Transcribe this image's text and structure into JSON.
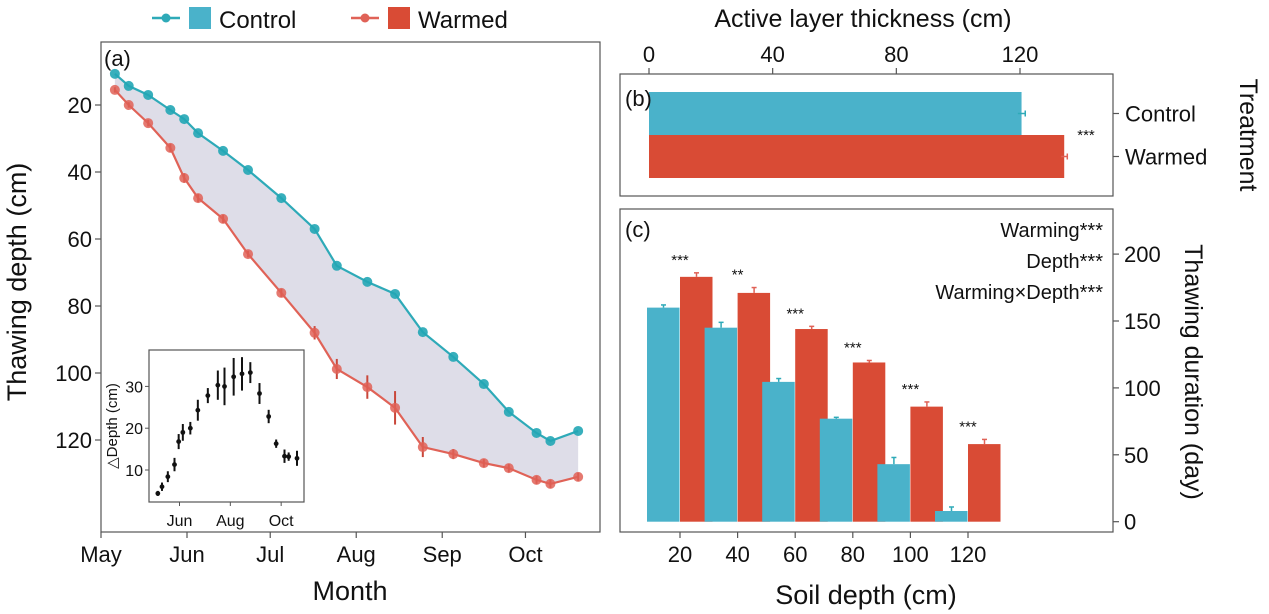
{
  "legend": {
    "items": [
      {
        "label": "Control",
        "color": "#4AB2CA",
        "line_color": "#2EAAB8"
      },
      {
        "label": "Warmed",
        "color": "#D94B35",
        "line_color": "#E06257"
      }
    ]
  },
  "colors": {
    "control": "#4AB2CA",
    "control_line": "#2EAAB8",
    "warmed": "#D94B35",
    "warmed_line": "#E06257",
    "fill_between": "#DCDBE7"
  },
  "chart_data": [
    {
      "panel": "a",
      "panel_label": "(a)",
      "type": "line",
      "xlabel": "Month",
      "ylabel": "Thawing depth (cm)",
      "y_reversed": true,
      "ylim": [
        1,
        150
      ],
      "yticks": [
        20,
        40,
        60,
        80,
        100,
        120
      ],
      "x_unit": "days since May 1",
      "xlim": [
        -2,
        178
      ],
      "xticks": [
        {
          "label": "May",
          "value": 0
        },
        {
          "label": "Jun",
          "value": 31
        },
        {
          "label": "Jul",
          "value": 61
        },
        {
          "label": "Aug",
          "value": 92
        },
        {
          "label": "Sep",
          "value": 123
        },
        {
          "label": "Oct",
          "value": 153
        }
      ],
      "x": [
        5,
        10,
        17,
        25,
        30,
        35,
        44,
        53,
        65,
        77,
        85,
        96,
        106,
        116,
        127,
        138,
        147,
        157,
        162,
        172
      ],
      "series": [
        {
          "name": "Control",
          "values": [
            10.7,
            14.3,
            17.0,
            21.5,
            24.2,
            28.4,
            33.7,
            39.4,
            47.8,
            57.0,
            68.0,
            72.8,
            76.4,
            87.8,
            95.2,
            103.3,
            111.6,
            117.9,
            120.3,
            117.3
          ]
        },
        {
          "name": "Warmed",
          "values": [
            15.5,
            20.0,
            25.4,
            32.8,
            41.8,
            47.8,
            54.0,
            64.5,
            76.1,
            88.0,
            98.8,
            104.2,
            110.4,
            122.1,
            124.2,
            126.9,
            128.4,
            131.9,
            133.1,
            131.0
          ],
          "errors": [
            0.8,
            0.8,
            1.0,
            1.2,
            1.4,
            1.2,
            1.2,
            1.0,
            1.2,
            2.0,
            3.0,
            3.5,
            5.0,
            3.0,
            1.5,
            1.2,
            1.2,
            1.2,
            1.2,
            1.2
          ]
        }
      ],
      "shaded_between_series": true,
      "inset": {
        "type": "scatter",
        "ylabel": "△Depth (cm)",
        "yticks": [
          10,
          20,
          30
        ],
        "ylim": [
          2,
          39
        ],
        "xticks": [
          {
            "label": "Jun",
            "value": 31
          },
          {
            "label": "Aug",
            "value": 92
          },
          {
            "label": "Oct",
            "value": 153
          }
        ],
        "xlim": [
          -2,
          178
        ],
        "x": [
          5,
          10,
          17,
          25,
          30,
          35,
          44,
          53,
          65,
          77,
          85,
          96,
          106,
          116,
          127,
          138,
          147,
          157,
          162,
          172
        ],
        "values": [
          4.4,
          6.0,
          8.4,
          11.3,
          16.8,
          19.0,
          20.0,
          24.3,
          27.8,
          30.3,
          30.0,
          32.3,
          33.0,
          33.3,
          28.3,
          22.8,
          16.3,
          13.3,
          13.2,
          12.8
        ],
        "errors": [
          0.6,
          1.0,
          1.3,
          1.6,
          1.8,
          2.0,
          1.5,
          2.5,
          1.8,
          3.5,
          4.5,
          4.5,
          4.0,
          2.5,
          2.5,
          1.6,
          1.0,
          1.6,
          1.0,
          1.8
        ]
      }
    },
    {
      "panel": "b",
      "panel_label": "(b)",
      "type": "bar",
      "orientation": "horizontal",
      "title": "Active layer thickness (cm)",
      "ylabel": "Treatment",
      "categories": [
        "Control",
        "Warmed"
      ],
      "values": [
        120.5,
        134.3
      ],
      "errors": [
        1.2,
        1.0
      ],
      "xlim": [
        -9,
        151
      ],
      "xticks": [
        0,
        40,
        80,
        120
      ],
      "x_axis_position": "top",
      "y_axis_position": "right",
      "annotation": "***"
    },
    {
      "panel": "c",
      "panel_label": "(c)",
      "type": "bar",
      "xlabel": "Soil depth (cm)",
      "ylabel": "Thawing duration (day)",
      "y_axis_position": "right",
      "categories": [
        "20",
        "40",
        "60",
        "80",
        "100",
        "120"
      ],
      "series": [
        {
          "name": "Control",
          "values": [
            160,
            145,
            104.5,
            77,
            43,
            8
          ],
          "errors": [
            2,
            4,
            2.5,
            1,
            5,
            3
          ]
        },
        {
          "name": "Warmed",
          "values": [
            183,
            171,
            144,
            119,
            86,
            58
          ],
          "errors": [
            3,
            4,
            2,
            1.5,
            3.5,
            3.5
          ]
        }
      ],
      "ylim": [
        -9,
        230
      ],
      "yticks": [
        0,
        50,
        100,
        150,
        200
      ],
      "significance": [
        "***",
        "**",
        "***",
        "***",
        "***",
        "***"
      ],
      "stats_text": [
        "Warming***",
        "Depth***",
        "Warming×Depth***"
      ]
    }
  ]
}
